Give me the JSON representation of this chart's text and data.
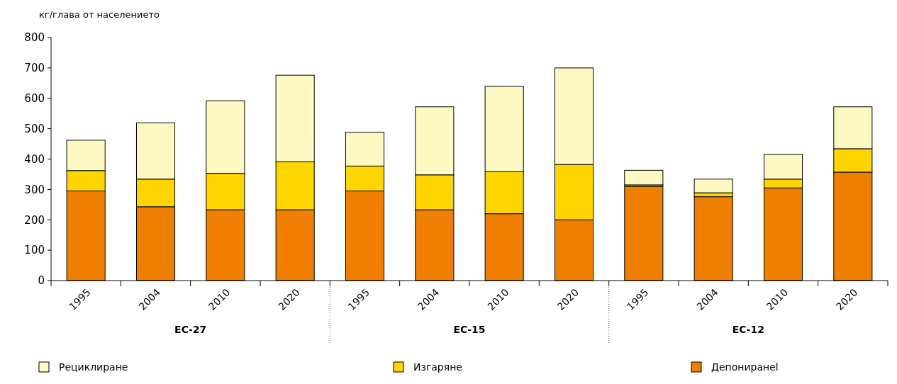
{
  "chart_data": {
    "type": "bar",
    "stacked": true,
    "ylabel": "кг/глава от населението",
    "categories": [
      "1995",
      "2004",
      "2010",
      "2020",
      "1995",
      "2004",
      "2010",
      "2020",
      "1995",
      "2004",
      "2010",
      "2020"
    ],
    "series": [
      {
        "name": "Депониранеl",
        "color": "#ee7f00",
        "values": [
          295,
          243,
          233,
          233,
          295,
          233,
          220,
          200,
          310,
          276,
          305,
          357
        ]
      },
      {
        "name": "Изгаряне",
        "color": "#ffd500",
        "values": [
          67,
          91,
          120,
          158,
          82,
          115,
          138,
          182,
          5,
          13,
          29,
          77
        ]
      },
      {
        "name": "Рециклиране",
        "color": "#fef8c2",
        "values": [
          100,
          185,
          239,
          285,
          111,
          224,
          281,
          318,
          48,
          45,
          81,
          138
        ]
      }
    ],
    "ylim": [
      0,
      800
    ],
    "yticks": [
      0,
      100,
      200,
      300,
      400,
      500,
      600,
      700,
      800
    ],
    "grid": false,
    "legend": "bottom",
    "annotations": [
      "ЕС-27",
      "ЕС-15",
      "ЕС-12"
    ]
  }
}
